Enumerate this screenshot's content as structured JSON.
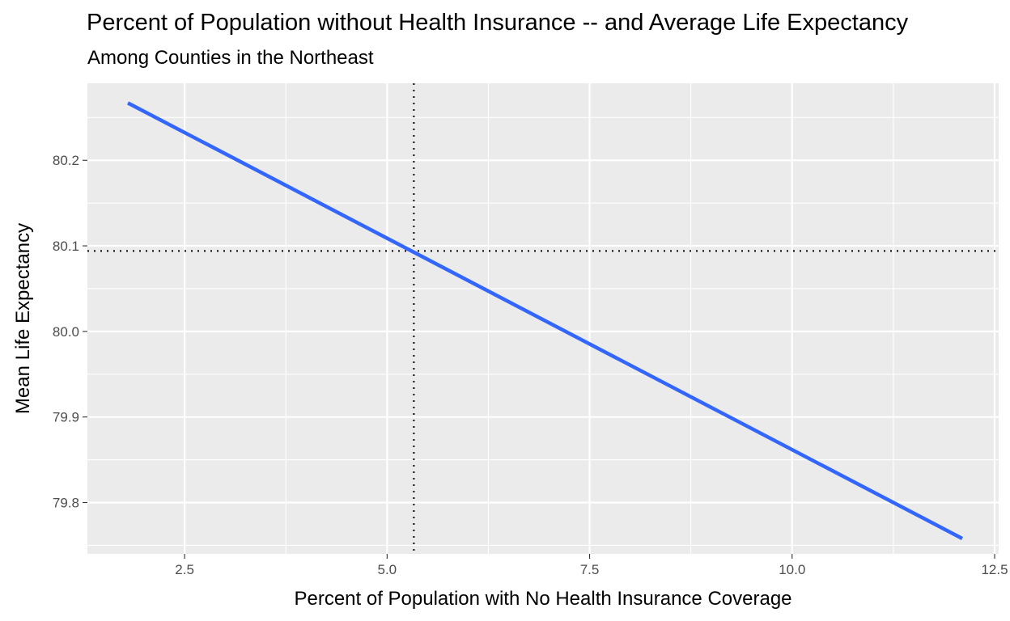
{
  "chart_data": {
    "type": "line",
    "title": "Percent of Population without Health Insurance -- and Average Life Expectancy",
    "subtitle": "Among Counties in the Northeast",
    "xlabel": "Percent of Population with No Health Insurance Coverage",
    "ylabel": "Mean Life Expectancy",
    "xlim": [
      1.3,
      12.55
    ],
    "ylim": [
      79.74,
      80.29
    ],
    "x_ticks": [
      "2.5",
      "5.0",
      "7.5",
      "10.0",
      "12.5"
    ],
    "y_ticks": [
      "79.8",
      "79.9",
      "80.0",
      "80.1",
      "80.2"
    ],
    "grid": true,
    "series": [
      {
        "x": [
          1.8,
          12.1
        ],
        "y": [
          80.267,
          79.758
        ]
      }
    ],
    "reference_lines": {
      "vertical_x": 5.33,
      "horizontal_y": 80.094
    },
    "colors": {
      "line": "#3366ff",
      "panel": "#ebebeb",
      "grid": "#ffffff",
      "reference": "#000000"
    }
  }
}
